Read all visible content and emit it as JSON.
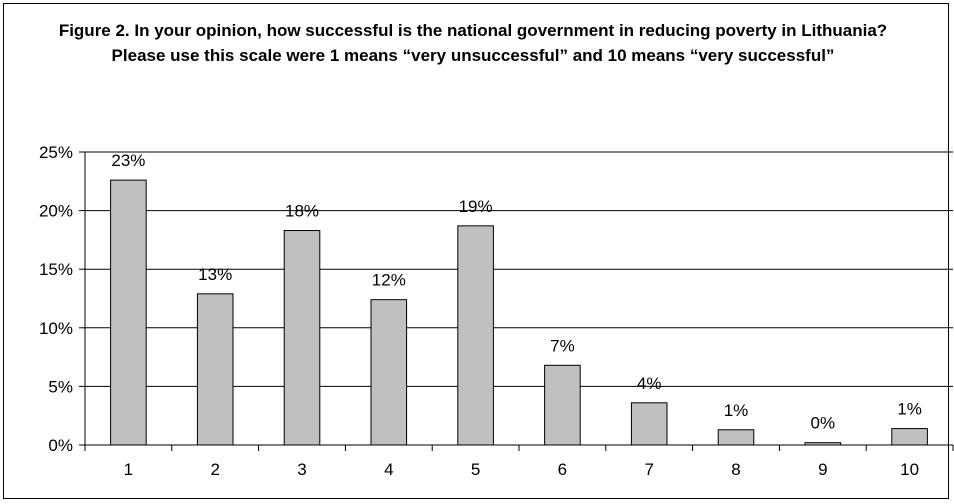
{
  "chart_data": {
    "type": "bar",
    "title": "Figure 2. In your opinion, how successful is the national government in reducing poverty in Lithuania? Please use this scale were 1 means “very unsuccessful” and 10 means “very successful”",
    "categories": [
      "1",
      "2",
      "3",
      "4",
      "5",
      "6",
      "7",
      "8",
      "9",
      "10"
    ],
    "values": [
      22.6,
      12.9,
      18.3,
      12.4,
      18.7,
      6.8,
      3.6,
      1.3,
      0.2,
      1.4
    ],
    "data_labels": [
      "23%",
      "13%",
      "18%",
      "12%",
      "19%",
      "7%",
      "4%",
      "1%",
      "0%",
      "1%"
    ],
    "y_ticks": [
      0,
      5,
      10,
      15,
      20,
      25
    ],
    "y_tick_labels": [
      "0%",
      "5%",
      "10%",
      "15%",
      "20%",
      "25%"
    ],
    "ylim": [
      0,
      25
    ],
    "xlabel": "",
    "ylabel": "",
    "grid": true,
    "legend": "none",
    "colors": {
      "bar_fill": "#c0c0c0",
      "bar_stroke": "#000000",
      "gridline": "#000000",
      "background": "#ffffff"
    }
  }
}
